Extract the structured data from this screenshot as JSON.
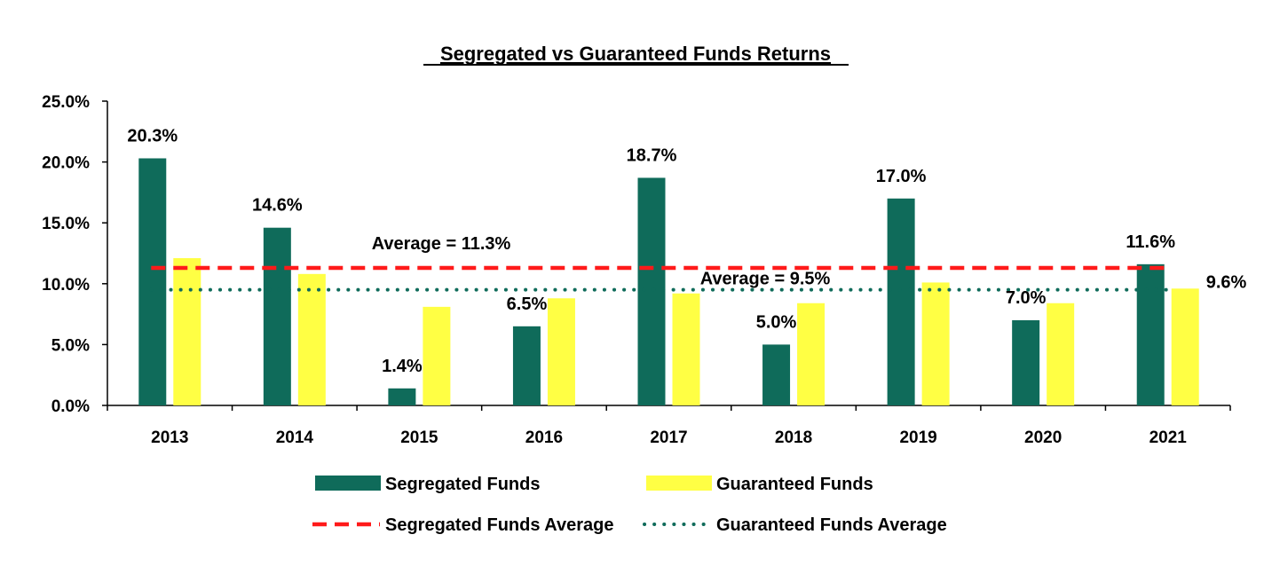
{
  "chart_data": {
    "type": "bar",
    "title": "Segregated vs Guaranteed Funds Returns",
    "categories": [
      "2013",
      "2014",
      "2015",
      "2016",
      "2017",
      "2018",
      "2019",
      "2020",
      "2021"
    ],
    "series": [
      {
        "name": "Segregated Funds",
        "color": "#0f6b5a",
        "values": [
          20.3,
          14.6,
          1.4,
          6.5,
          18.7,
          5.0,
          17.0,
          7.0,
          11.6
        ],
        "labels": [
          "20.3%",
          "14.6%",
          "1.4%",
          "6.5%",
          "18.7%",
          "5.0%",
          "17.0%",
          "7.0%",
          "11.6%"
        ]
      },
      {
        "name": "Guaranteed Funds",
        "color": "#ffff44",
        "values": [
          12.1,
          10.8,
          8.1,
          8.8,
          9.2,
          8.4,
          10.1,
          8.4,
          9.6
        ],
        "labels": [
          "",
          "",
          "",
          "",
          "",
          "",
          "",
          "",
          "9.6%"
        ]
      }
    ],
    "averages": [
      {
        "name": "Segregated Funds Average",
        "value": 11.3,
        "label": "Average = 11.3%",
        "color": "#ff1a1a",
        "style": "dashed"
      },
      {
        "name": "Guaranteed Funds Average",
        "value": 9.5,
        "label": "Average = 9.5%",
        "color": "#0f6b5a",
        "style": "dotted"
      }
    ],
    "y_axis": {
      "min": 0,
      "max": 25,
      "ticks": [
        0,
        5,
        10,
        15,
        20,
        25
      ],
      "tick_labels": [
        "0.0%",
        "5.0%",
        "10.0%",
        "15.0%",
        "20.0%",
        "25.0%"
      ]
    },
    "grid": false,
    "legend_position": "bottom"
  }
}
